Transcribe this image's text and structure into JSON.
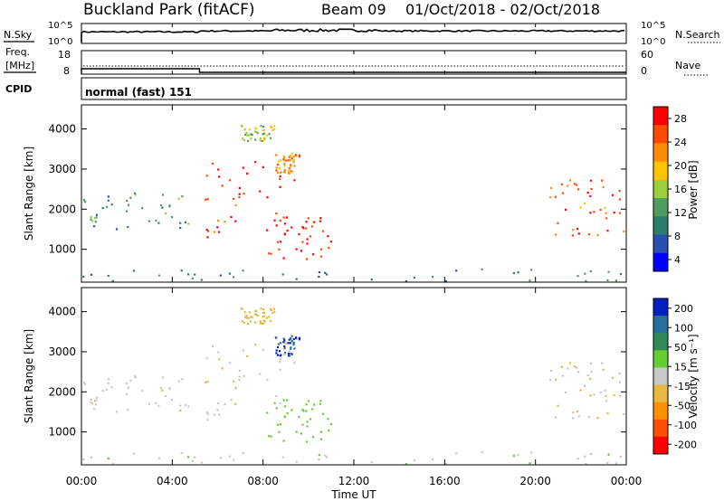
{
  "header": {
    "site": "Buckland Park (fitACF)",
    "beam": "Beam 09",
    "dates": "01/Oct/2018 - 02/Oct/2018"
  },
  "nsky": {
    "label": "N.Sky",
    "right_label": "N.Search",
    "left_ticks": [
      "10^5",
      "10^0"
    ],
    "right_ticks": [
      "10^5",
      "10^0"
    ]
  },
  "freq": {
    "label_line1": "Freq.",
    "label_line2": "[MHz]",
    "right_label": "Nave",
    "left_ticks": [
      "18",
      "8"
    ],
    "right_ticks": [
      "60",
      "0"
    ]
  },
  "cpid": {
    "label": "CPID",
    "text": "normal (fast) 151"
  },
  "power_panel": {
    "ylabel": "Slant Range [km]",
    "yticks": [
      "4000",
      "3000",
      "2000",
      "1000"
    ],
    "colorbar_label": "Power [dB]",
    "colorbar_ticks": [
      "28",
      "24",
      "20",
      "16",
      "12",
      "8",
      "4"
    ],
    "colorbar_colors": [
      "#ff0000",
      "#ff4a00",
      "#ff8c00",
      "#ffc400",
      "#9ccf3a",
      "#4f9c62",
      "#2e7d6a",
      "#2a4fb0",
      "#0000ff"
    ]
  },
  "velocity_panel": {
    "ylabel": "Slant Range [km]",
    "yticks": [
      "4000",
      "3000",
      "2000",
      "1000"
    ],
    "colorbar_label": "Velocity [m s⁻¹]",
    "colorbar_ticks": [
      "200",
      "100",
      "50",
      "15",
      "-15",
      "-50",
      "-100",
      "-200"
    ],
    "colorbar_colors": [
      "#0020c0",
      "#2a6ea0",
      "#2e8b57",
      "#66cc33",
      "#c8c8c8",
      "#e8b840",
      "#ff9000",
      "#ff5000",
      "#ff0000"
    ]
  },
  "xaxis": {
    "ticks": [
      "00:00",
      "04:00",
      "08:00",
      "12:00",
      "16:00",
      "20:00",
      "00:00"
    ],
    "label": "Time UT"
  },
  "chart_data": {
    "type": "heatmap",
    "x_range_hours": [
      0,
      24
    ],
    "y_range_km": [
      180,
      4600
    ],
    "frequency_mhz": [
      {
        "from": 0,
        "to": 5.2,
        "value": 11
      },
      {
        "from": 5.2,
        "to": 24,
        "value": 10
      }
    ],
    "echo_regions": [
      {
        "t0": 0.0,
        "t1": 4.8,
        "r0": 1500,
        "r1": 2400,
        "power_db": 12,
        "velocity": -5
      },
      {
        "t0": 5.3,
        "t1": 9.5,
        "r0": 1300,
        "r1": 3300,
        "power_db": 26,
        "velocity": -10
      },
      {
        "t0": 8.0,
        "t1": 11.0,
        "r0": 700,
        "r1": 1800,
        "power_db": 28,
        "velocity": 30
      },
      {
        "t0": 7.0,
        "t1": 8.5,
        "r0": 3700,
        "r1": 4100,
        "power_db": 16,
        "velocity": -30
      },
      {
        "t0": 8.5,
        "t1": 9.6,
        "r0": 2900,
        "r1": 3400,
        "power_db": 22,
        "velocity": 200
      },
      {
        "t0": 20.5,
        "t1": 24.0,
        "r0": 1300,
        "r1": 2800,
        "power_db": 24,
        "velocity": -10
      },
      {
        "t0": 0.0,
        "t1": 24.0,
        "r0": 200,
        "r1": 500,
        "power_db": 10,
        "velocity": 5
      }
    ]
  }
}
